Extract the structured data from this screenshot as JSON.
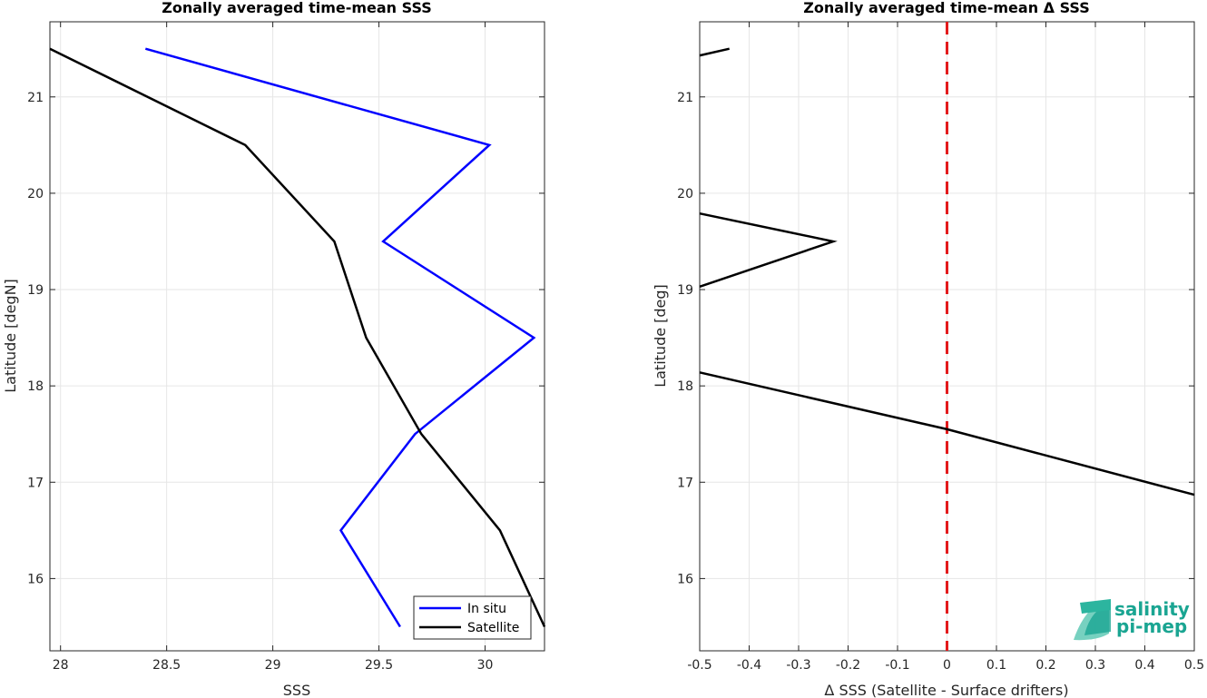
{
  "logo": {
    "line1": "salinity",
    "line2": "pi-mep"
  },
  "chart_data": [
    {
      "type": "line",
      "title": "Zonally averaged time-mean SSS",
      "xlabel": "SSS",
      "ylabel": "Latitude [degN]",
      "xlim": [
        27.95,
        30.28
      ],
      "ylim": [
        15.25,
        21.78
      ],
      "xticks": [
        28,
        28.5,
        29,
        29.5,
        30
      ],
      "yticks": [
        16,
        17,
        18,
        19,
        20,
        21
      ],
      "grid": true,
      "legend_position": "bottom-right",
      "series": [
        {
          "name": "In situ",
          "color": "#0000ff",
          "x": [
            28.4,
            30.02,
            29.52,
            30.23,
            29.67,
            29.32,
            29.6
          ],
          "y": [
            21.5,
            20.5,
            19.5,
            18.5,
            17.5,
            16.5,
            15.5
          ]
        },
        {
          "name": "Satellite",
          "color": "#000000",
          "x": [
            27.95,
            28.87,
            29.29,
            29.44,
            29.7,
            30.07,
            30.28
          ],
          "y": [
            21.5,
            20.5,
            19.5,
            18.5,
            17.5,
            16.5,
            15.5
          ]
        }
      ]
    },
    {
      "type": "line",
      "title": "Zonally averaged time-mean Δ SSS",
      "xlabel": "Δ SSS (Satellite - Surface drifters)",
      "ylabel": "Latitude [deg]",
      "xlim": [
        -0.5,
        0.5
      ],
      "ylim": [
        15.25,
        21.78
      ],
      "xticks": [
        -0.5,
        -0.4,
        -0.3,
        -0.2,
        -0.1,
        0,
        0.1,
        0.2,
        0.3,
        0.4,
        0.5
      ],
      "xticklabels": [
        "-0.5",
        "-0.4",
        "-0.3",
        "-0.2",
        "-0.1",
        "0",
        "0.1",
        "0.2",
        "0.3",
        "0.4",
        "0.5"
      ],
      "yticks": [
        16,
        17,
        18,
        19,
        20,
        21
      ],
      "grid": true,
      "reference_line": {
        "x": 0,
        "color": "#e31a1c",
        "style": "dashed"
      },
      "series": [
        {
          "color": "#000000",
          "x": [
            -0.5,
            -0.44
          ],
          "y": [
            21.43,
            21.5
          ]
        },
        {
          "color": "#000000",
          "x": [
            -0.5,
            -0.23,
            -0.5
          ],
          "y": [
            19.79,
            19.5,
            19.03
          ]
        },
        {
          "color": "#000000",
          "x": [
            -0.5,
            0.0,
            0.5
          ],
          "y": [
            18.14,
            17.55,
            16.87
          ]
        }
      ]
    }
  ]
}
